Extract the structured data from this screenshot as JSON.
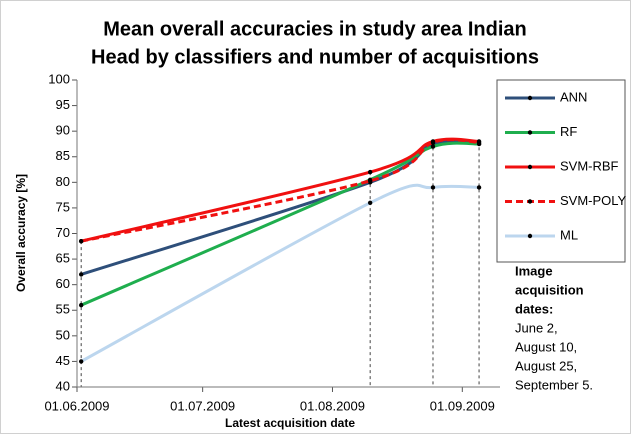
{
  "chart_data": {
    "type": "line",
    "title": [
      "Mean overall accuracies in study area Indian",
      "Head by classifiers and number of acquisitions"
    ],
    "x_label": "Latest acquisition date",
    "y_label": "Overall accuracy [%]",
    "x": [
      "02.06.2009",
      "10.08.2009",
      "25.08.2009",
      "05.09.2009"
    ],
    "xlim": [
      "01.06.2009",
      "10.09.2009"
    ],
    "xticks": [
      "01.06.2009",
      "01.07.2009",
      "01.08.2009",
      "01.09.2009"
    ],
    "ylim": [
      40,
      100
    ],
    "yticks": [
      40,
      45,
      50,
      55,
      60,
      65,
      70,
      75,
      80,
      85,
      90,
      95,
      100
    ],
    "smooth": true,
    "drop_lines": true,
    "series": [
      {
        "name": "ANN",
        "color": "#2e4f7a",
        "dashed": false,
        "values": [
          62,
          80,
          87.5,
          87.5
        ]
      },
      {
        "name": "RF",
        "color": "#1fae4e",
        "dashed": false,
        "values": [
          56,
          80.5,
          87,
          87.5
        ]
      },
      {
        "name": "SVM-RBF",
        "color": "#f01010",
        "dashed": false,
        "values": [
          68.5,
          82,
          88,
          88
        ]
      },
      {
        "name": "SVM-POLY",
        "color": "#f01010",
        "dashed": true,
        "values": [
          68.5,
          80.3,
          87.8,
          87.8
        ]
      },
      {
        "name": "ML",
        "color": "#bcd6ee",
        "dashed": false,
        "values": [
          45,
          76,
          79,
          79
        ]
      }
    ],
    "annotation": {
      "title": [
        "Image",
        "acquisition",
        "dates:"
      ],
      "lines": [
        "June 2,",
        "August 10,",
        "August 25,",
        "September 5."
      ]
    }
  }
}
